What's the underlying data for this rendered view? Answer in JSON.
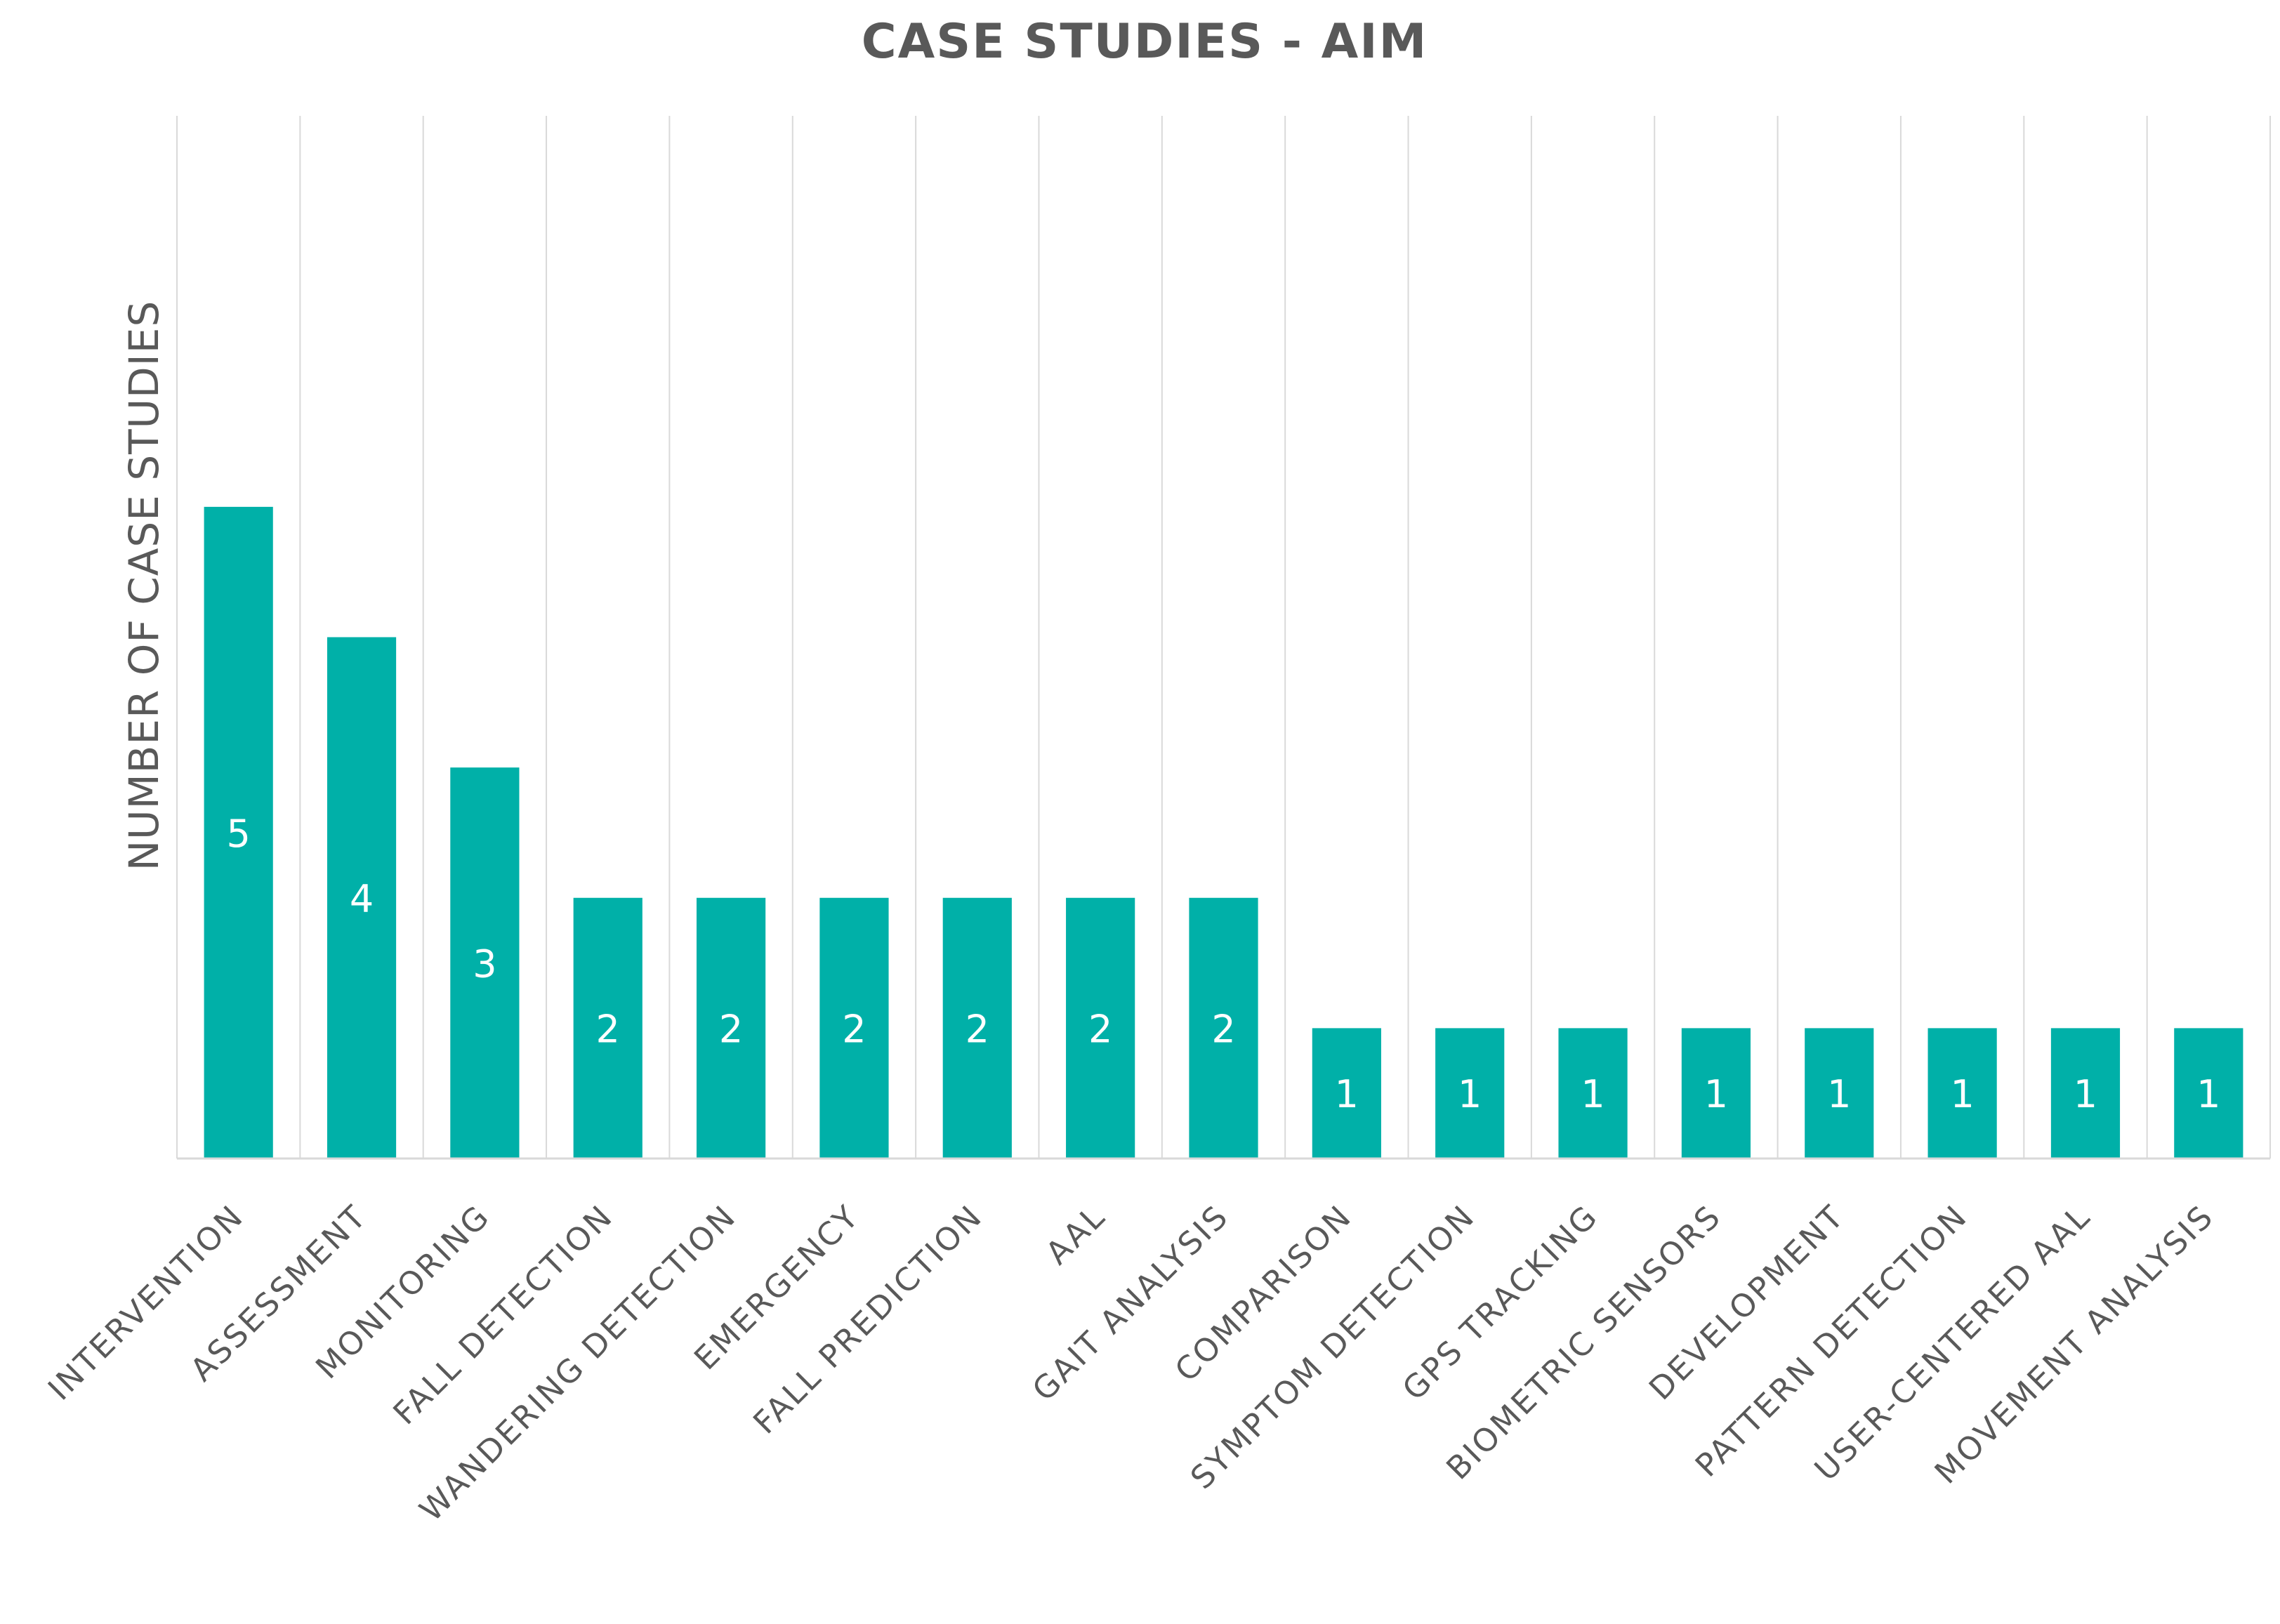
{
  "chart_data": {
    "type": "bar",
    "title": "CASE STUDIES - AIM",
    "xlabel": "",
    "ylabel": "NUMBER OF CASE STUDIES",
    "categories": [
      "INTERVENTION",
      "ASSESSMENT",
      "MONITORING",
      "FALL DETECTION",
      "WANDERING DETECTION",
      "EMERGENCY",
      "FALL PREDICTION",
      "AAL",
      "GAIT ANALYSIS",
      "COMPARISON",
      "SYMPTOM DETECTION",
      "GPS TRACKING",
      "BIOMETRIC SENSORS",
      "DEVELOPMENT",
      "PATTERN DETECTION",
      "USER-CENTERED AAL",
      "MOVEMENT ANALYSIS"
    ],
    "values": [
      5,
      4,
      3,
      2,
      2,
      2,
      2,
      2,
      2,
      1,
      1,
      1,
      1,
      1,
      1,
      1,
      1
    ],
    "ylim": [
      0,
      8
    ],
    "grid": "vertical",
    "data_labels": true,
    "colors": {
      "bar": "#00B0A8",
      "text": "#595959",
      "grid": "#D9D9D9",
      "data_label": "#FFFFFF"
    }
  }
}
